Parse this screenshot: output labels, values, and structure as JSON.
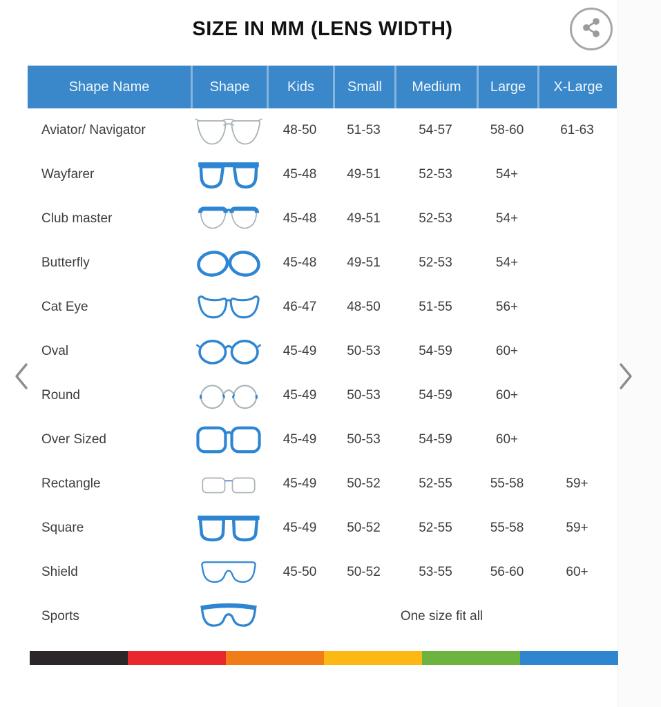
{
  "title": "SIZE IN MM (LENS WIDTH)",
  "share": {
    "icon": "share-icon"
  },
  "nav": {
    "prev_icon": "chevron-left-icon",
    "next_icon": "chevron-right-icon"
  },
  "colors": {
    "header_blue": "#3a87c9",
    "icon_blue": "#2e86d2",
    "icon_outline_gray": "#a9b4b8",
    "text_dark": "#3d3d3d",
    "chevron_gray": "#8c8c8c",
    "share_gray": "#9b9b9b"
  },
  "table": {
    "columns": [
      "Shape Name",
      "Shape",
      "Kids",
      "Small",
      "Medium",
      "Large",
      "X-Large"
    ],
    "rows": [
      {
        "name": "Aviator/ Navigator",
        "icon": "aviator",
        "sizes": [
          "48-50",
          "51-53",
          "54-57",
          "58-60",
          "61-63"
        ]
      },
      {
        "name": "Wayfarer",
        "icon": "wayfarer",
        "sizes": [
          "45-48",
          "49-51",
          "52-53",
          "54+",
          ""
        ]
      },
      {
        "name": "Club master",
        "icon": "clubmaster",
        "sizes": [
          "45-48",
          "49-51",
          "52-53",
          "54+",
          ""
        ]
      },
      {
        "name": "Butterfly",
        "icon": "butterfly",
        "sizes": [
          "45-48",
          "49-51",
          "52-53",
          "54+",
          ""
        ]
      },
      {
        "name": "Cat Eye",
        "icon": "cateye",
        "sizes": [
          "46-47",
          "48-50",
          "51-55",
          "56+",
          ""
        ]
      },
      {
        "name": "Oval",
        "icon": "oval",
        "sizes": [
          "45-49",
          "50-53",
          "54-59",
          "60+",
          ""
        ]
      },
      {
        "name": "Round",
        "icon": "round",
        "sizes": [
          "45-49",
          "50-53",
          "54-59",
          "60+",
          ""
        ]
      },
      {
        "name": "Over Sized",
        "icon": "oversized",
        "sizes": [
          "45-49",
          "50-53",
          "54-59",
          "60+",
          ""
        ]
      },
      {
        "name": "Rectangle",
        "icon": "rectangle",
        "sizes": [
          "45-49",
          "50-52",
          "52-55",
          "55-58",
          "59+"
        ]
      },
      {
        "name": "Square",
        "icon": "square",
        "sizes": [
          "45-49",
          "50-52",
          "52-55",
          "55-58",
          "59+"
        ]
      },
      {
        "name": "Shield",
        "icon": "shield",
        "sizes": [
          "45-50",
          "50-52",
          "53-55",
          "56-60",
          "60+"
        ]
      },
      {
        "name": "Sports",
        "icon": "sports",
        "span_text": "One size fit all"
      }
    ]
  },
  "footer": {
    "stripe_colors": [
      "#2a2629",
      "#e8282c",
      "#f07d18",
      "#fdb813",
      "#6db33f",
      "#2f86ce"
    ]
  }
}
